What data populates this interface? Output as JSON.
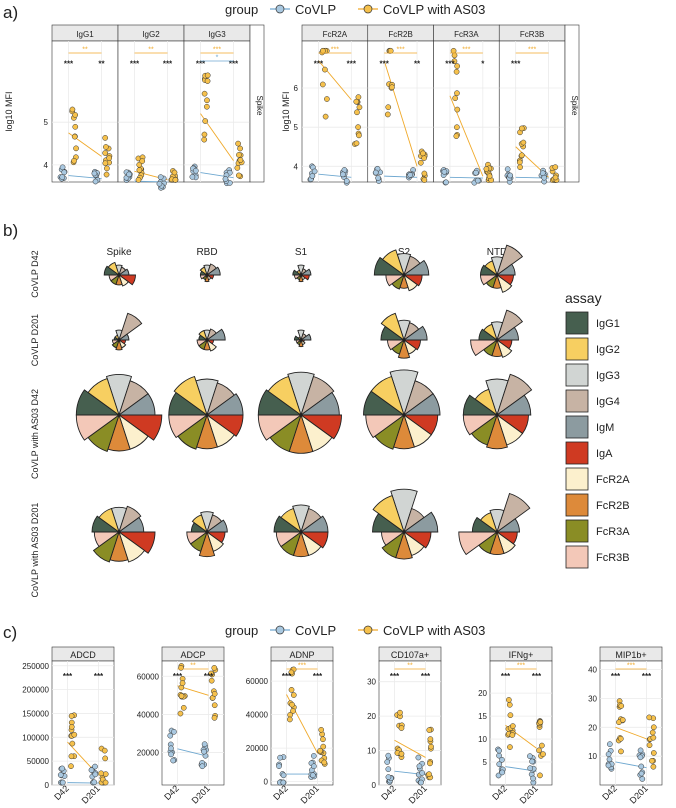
{
  "colors": {
    "corona": "#a9c8e0",
    "corona_line": "#6fa8d0",
    "as03": "#f6c14c",
    "as03_line": "#f0a92a",
    "strip": "#e9e9e9",
    "grid": "#ebebeb"
  },
  "legend_top": {
    "title": "group",
    "items": [
      "CoVLP",
      "CoVLP with AS03"
    ]
  },
  "legend_bottom": {
    "title": "group",
    "items": [
      "CoVLP",
      "CoVLP with AS03"
    ]
  },
  "assay_legend": {
    "title": "assay",
    "items": [
      {
        "label": "IgG1",
        "color": "#465f4f"
      },
      {
        "label": "IgG2",
        "color": "#f7cf61"
      },
      {
        "label": "IgG3",
        "color": "#d1d5d3"
      },
      {
        "label": "IgG4",
        "color": "#c7b3a4"
      },
      {
        "label": "IgM",
        "color": "#8c9ba0"
      },
      {
        "label": "IgA",
        "color": "#cf3a22"
      },
      {
        "label": "FcR2A",
        "color": "#fcf0cd"
      },
      {
        "label": "FcR2B",
        "color": "#dd8a3a"
      },
      {
        "label": "FcR3A",
        "color": "#8a8d25"
      },
      {
        "label": "FcR3B",
        "color": "#f3c8b8"
      }
    ]
  },
  "panel_labels": {
    "a": "a)",
    "b": "b)",
    "c": "c)"
  },
  "chart_data": [
    {
      "id": "a_left",
      "type": "scatter",
      "panels": [
        "IgG1",
        "IgG2",
        "IgG3"
      ],
      "ylabel": "log10 MFI",
      "yticks": [
        4,
        5
      ],
      "ylim": [
        3.6,
        6.9
      ],
      "row_strip": "Spike",
      "sig_top": [
        {
          "panel": "IgG1",
          "text": "**",
          "color": "as03"
        },
        {
          "panel": "IgG2",
          "text": "**",
          "color": "as03"
        },
        {
          "panel": "IgG3",
          "text": "***",
          "color": "as03"
        },
        {
          "panel": "IgG3",
          "text": "*",
          "color": "corona"
        }
      ],
      "sig_within": [
        {
          "panel": "IgG1",
          "d42": "***",
          "d201": "**"
        },
        {
          "panel": "IgG2",
          "d42": "***",
          "d201": "***"
        },
        {
          "panel": "IgG3",
          "d42": "***",
          "d201": "***"
        }
      ],
      "means": {
        "IgG1": {
          "corona": [
            3.75,
            3.68
          ],
          "as03": [
            4.75,
            4.2
          ]
        },
        "IgG2": {
          "corona": [
            3.62,
            3.6
          ],
          "as03": [
            3.85,
            3.65
          ]
        },
        "IgG3": {
          "corona": [
            3.82,
            3.7
          ],
          "as03": [
            5.2,
            4.1
          ]
        }
      }
    },
    {
      "id": "a_right",
      "type": "scatter",
      "panels": [
        "FcR2A",
        "FcR2B",
        "FcR3A",
        "FcR3B"
      ],
      "ylabel": "log10 MFI",
      "yticks": [
        4,
        5,
        6
      ],
      "ylim": [
        3.6,
        7.2
      ],
      "row_strip": "Spike",
      "sig_top": [
        {
          "panel": "FcR2A",
          "text": "***",
          "color": "as03"
        },
        {
          "panel": "FcR2B",
          "text": "***",
          "color": "as03"
        },
        {
          "panel": "FcR3A",
          "text": "***",
          "color": "as03"
        },
        {
          "panel": "FcR3B",
          "text": "***",
          "color": "as03"
        }
      ],
      "sig_within": [
        {
          "panel": "FcR2A",
          "d42": "***",
          "d201": "***"
        },
        {
          "panel": "FcR2B",
          "d42": "***",
          "d201": "**"
        },
        {
          "panel": "FcR3A",
          "d42": "***",
          "d201": "*"
        },
        {
          "panel": "FcR3B",
          "d42": "***",
          "d201": ""
        }
      ],
      "means": {
        "FcR2A": {
          "corona": [
            3.8,
            3.72
          ],
          "as03": [
            6.7,
            5.7
          ]
        },
        "FcR2B": {
          "corona": [
            3.75,
            3.72
          ],
          "as03": [
            6.7,
            4.0
          ]
        },
        "FcR3A": {
          "corona": [
            3.72,
            3.7
          ],
          "as03": [
            5.8,
            3.75
          ]
        },
        "FcR3B": {
          "corona": [
            3.72,
            3.7
          ],
          "as03": [
            4.5,
            3.72
          ]
        }
      }
    },
    {
      "id": "b_polar",
      "type": "polar-bar",
      "columns": [
        "Spike",
        "RBD",
        "S1",
        "S2",
        "NTD"
      ],
      "rows": [
        "CoVLP D42",
        "CoVLP D201",
        "CoVLP with AS03 D42",
        "CoVLP with AS03 D201"
      ],
      "assays": [
        "IgG1",
        "IgG2",
        "IgG3",
        "IgG4",
        "IgM",
        "IgA",
        "FcR2A",
        "FcR2B",
        "FcR3A",
        "FcR3B"
      ],
      "values": [
        [
          [
            0.45,
            0.4,
            0.3,
            0.25,
            0.3,
            0.5,
            0.35,
            0.3,
            0.3,
            0.3
          ],
          [
            0.2,
            0.25,
            0.3,
            0.35,
            0.4,
            0.2,
            0.15,
            0.2,
            0.15,
            0.2
          ],
          [
            0.25,
            0.15,
            0.3,
            0.2,
            0.3,
            0.25,
            0.15,
            0.2,
            0.15,
            0.2
          ],
          [
            0.9,
            0.8,
            0.65,
            0.6,
            0.75,
            0.55,
            0.5,
            0.4,
            0.45,
            0.55
          ],
          [
            0.5,
            0.45,
            0.55,
            0.95,
            0.55,
            0.5,
            0.55,
            0.4,
            0.4,
            0.5
          ]
        ],
        [
          [
            0.15,
            0.15,
            0.3,
            0.85,
            0.3,
            0.2,
            0.25,
            0.3,
            0.25,
            0.2
          ],
          [
            0.25,
            0.3,
            0.3,
            0.35,
            0.55,
            0.2,
            0.35,
            0.3,
            0.3,
            0.3
          ],
          [
            0.2,
            0.1,
            0.3,
            0.2,
            0.3,
            0.1,
            0.15,
            0.2,
            0.15,
            0.15
          ],
          [
            0.7,
            0.85,
            0.6,
            0.55,
            0.7,
            0.5,
            0.45,
            0.55,
            0.45,
            0.5
          ],
          [
            0.55,
            0.5,
            0.55,
            0.95,
            0.65,
            0.45,
            0.55,
            0.5,
            0.5,
            0.8
          ]
        ],
        [
          [
            0.95,
            0.85,
            0.9,
            0.8,
            0.8,
            0.95,
            0.8,
            0.8,
            0.85,
            0.95
          ],
          [
            0.85,
            0.9,
            0.8,
            0.75,
            0.8,
            0.8,
            0.75,
            0.75,
            0.8,
            0.85
          ],
          [
            0.95,
            0.9,
            0.95,
            0.9,
            0.85,
            0.9,
            0.85,
            0.85,
            0.85,
            0.95
          ],
          [
            0.9,
            0.9,
            1.0,
            0.8,
            0.8,
            0.75,
            0.75,
            0.75,
            0.8,
            0.85
          ],
          [
            0.75,
            0.6,
            0.8,
            0.95,
            0.75,
            0.7,
            0.7,
            0.75,
            0.7,
            0.75
          ]
        ],
        [
          [
            0.6,
            0.55,
            0.55,
            0.6,
            0.55,
            0.8,
            0.7,
            0.65,
            0.7,
            0.55
          ],
          [
            0.35,
            0.4,
            0.45,
            0.4,
            0.45,
            0.4,
            0.45,
            0.55,
            0.45,
            0.45
          ],
          [
            0.6,
            0.55,
            0.6,
            0.55,
            0.6,
            0.6,
            0.55,
            0.55,
            0.55,
            0.55
          ],
          [
            0.7,
            0.85,
            0.95,
            0.55,
            0.75,
            0.6,
            0.55,
            0.6,
            0.6,
            0.5
          ],
          [
            0.55,
            0.45,
            0.5,
            0.9,
            0.5,
            0.45,
            0.5,
            0.5,
            0.5,
            0.85
          ]
        ]
      ]
    },
    {
      "id": "c_functions",
      "type": "scatter",
      "panels": [
        {
          "title": "ADCD",
          "yticks": [
            0,
            50000,
            100000,
            150000,
            200000,
            250000
          ],
          "ylabels": [
            "0",
            "50000",
            "100000",
            "150000",
            "200000",
            "250000"
          ],
          "ylim": [
            0,
            260000
          ],
          "sig_top": "",
          "d42": "***",
          "d201": "***",
          "corona": [
            5000,
            4000
          ],
          "as03": [
            90000,
            20000
          ]
        },
        {
          "title": "ADCP",
          "yticks": [
            20000,
            40000,
            60000
          ],
          "ylabels": [
            "20000",
            "40000",
            "60000"
          ],
          "ylim": [
            3000,
            68000
          ],
          "sig_top": "**",
          "d42": "***",
          "d201": "***",
          "corona": [
            22000,
            18000
          ],
          "as03": [
            55000,
            50000
          ]
        },
        {
          "title": "ADNP",
          "yticks": [
            0,
            20000,
            40000,
            60000
          ],
          "ylabels": [
            "0",
            "20000",
            "40000",
            "60000"
          ],
          "ylim": [
            -2000,
            72000
          ],
          "sig_top": "***",
          "d42": "***",
          "d201": "***",
          "corona": [
            4500,
            4500
          ],
          "as03": [
            52000,
            17000
          ]
        },
        {
          "title": "CD107a+",
          "yticks": [
            0,
            10,
            20,
            30
          ],
          "ylabels": [
            "0",
            "10",
            "20",
            "30"
          ],
          "ylim": [
            0,
            36
          ],
          "sig_top": "**",
          "d42": "***",
          "d201": "***",
          "corona": [
            4,
            3
          ],
          "as03": [
            13,
            8
          ]
        },
        {
          "title": "IFNg+",
          "yticks": [
            5,
            10,
            15,
            20
          ],
          "ylabels": [
            "5",
            "10",
            "15",
            "20"
          ],
          "ylim": [
            0,
            27
          ],
          "sig_top": "***",
          "d42": "***",
          "d201": "***",
          "corona": [
            4,
            3
          ],
          "as03": [
            13,
            8
          ]
        },
        {
          "title": "MIP1b+",
          "yticks": [
            10,
            20,
            30,
            40
          ],
          "ylabels": [
            "10",
            "20",
            "30",
            "40"
          ],
          "ylim": [
            0,
            43
          ],
          "sig_top": "***",
          "d42": "***",
          "d201": "***",
          "corona": [
            8,
            6
          ],
          "as03": [
            20,
            16
          ]
        }
      ],
      "xticks": [
        "D42",
        "D201"
      ]
    }
  ]
}
